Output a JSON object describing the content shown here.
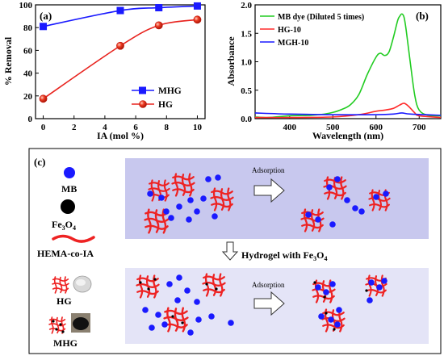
{
  "chart_data": [
    {
      "type": "line",
      "panel": "(a)",
      "xlabel": "IA (mol %)",
      "ylabel": "% Removal",
      "xlim": [
        -0.5,
        10.5
      ],
      "ylim": [
        0,
        100
      ],
      "xticks": [
        0,
        2,
        4,
        6,
        8,
        10
      ],
      "yticks": [
        0,
        20,
        40,
        60,
        80,
        100
      ],
      "legend_position": "bottom-right",
      "series": [
        {
          "name": "MHG",
          "color": "#1a1aff",
          "marker": "square",
          "x": [
            0,
            5,
            7.5,
            10
          ],
          "y": [
            81,
            95,
            97.5,
            99
          ]
        },
        {
          "name": "HG",
          "color": "#e8231e",
          "marker": "circle",
          "x": [
            0,
            5,
            7.5,
            10
          ],
          "y": [
            17.5,
            64,
            82,
            87
          ]
        }
      ]
    },
    {
      "type": "line",
      "panel": "(b)",
      "xlabel": "Wavelength (nm)",
      "ylabel": "Absorbance",
      "xlim": [
        320,
        750
      ],
      "ylim": [
        0,
        2.0
      ],
      "xticks": [
        400,
        500,
        600,
        700
      ],
      "yticks": [
        0.0,
        0.5,
        1.0,
        1.5,
        2.0
      ],
      "legend_position": "top-left",
      "series": [
        {
          "name": "MB dye (Diluted 5 times)",
          "color": "#22cc22",
          "x": [
            320,
            350,
            400,
            450,
            480,
            500,
            520,
            540,
            560,
            580,
            600,
            610,
            620,
            630,
            640,
            650,
            655,
            660,
            665,
            670,
            680,
            690,
            700,
            720,
            750
          ],
          "y": [
            0.03,
            0.02,
            0.05,
            0.06,
            0.08,
            0.11,
            0.16,
            0.24,
            0.42,
            0.78,
            1.08,
            1.15,
            1.11,
            1.17,
            1.42,
            1.72,
            1.8,
            1.84,
            1.78,
            1.55,
            0.95,
            0.4,
            0.15,
            0.06,
            0.05
          ]
        },
        {
          "name": "HG-10",
          "color": "#ff2a2a",
          "x": [
            320,
            400,
            500,
            560,
            600,
            620,
            640,
            655,
            665,
            675,
            690,
            700,
            750
          ],
          "y": [
            0.02,
            0.02,
            0.03,
            0.07,
            0.13,
            0.15,
            0.18,
            0.24,
            0.27,
            0.22,
            0.1,
            0.05,
            0.02
          ]
        },
        {
          "name": "MGH-10",
          "color": "#1a1aff",
          "x": [
            320,
            400,
            500,
            600,
            640,
            660,
            680,
            750
          ],
          "y": [
            0.1,
            0.08,
            0.07,
            0.07,
            0.08,
            0.1,
            0.08,
            0.06
          ]
        }
      ]
    }
  ],
  "schematic": {
    "panel": "(c)",
    "legend": {
      "mb": "MB",
      "fe3o4_main": "Fe",
      "fe3o4_sub": "3",
      "fe3o4_o": "O",
      "fe3o4_sub2": "4",
      "hema": "HEMA-co-IA",
      "hg": "HG",
      "mhg": "MHG"
    },
    "adsorption_label_top": "Adsorption",
    "adsorption_label_bottom": "Adsorption",
    "transition_main": "Hydrogel with Fe",
    "transition_sub": "3",
    "transition_o": "O",
    "transition_sub2": "4"
  }
}
